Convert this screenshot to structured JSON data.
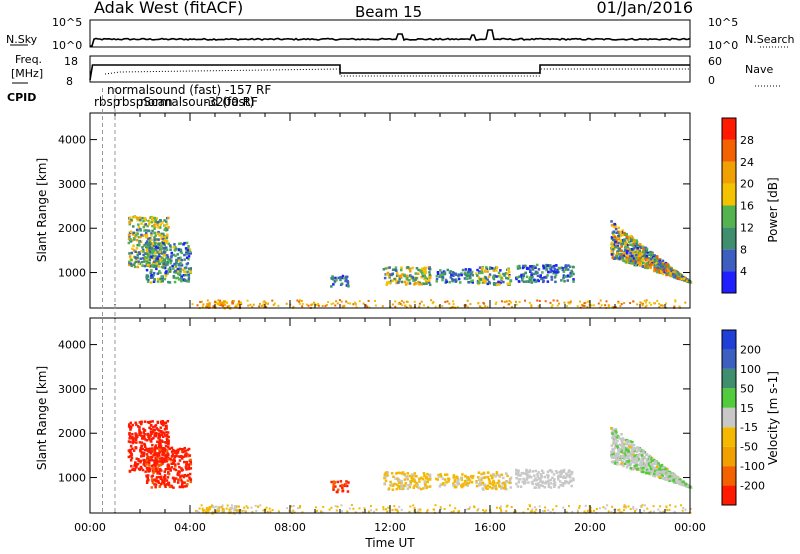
{
  "header": {
    "station": "Adak West (fitACF)",
    "beam": "Beam 15",
    "date": "01/Jan/2016"
  },
  "noise_panel": {
    "left_label": "N.Sky",
    "right_label": "N.Search",
    "y_ticks": [
      "10^5",
      "10^0"
    ]
  },
  "freq_panel": {
    "left_label_1": "Freq.",
    "left_label_2": "[MHz]",
    "left_ticks": [
      "18",
      "8"
    ],
    "right_label": "Nave",
    "right_ticks": [
      "60",
      "0"
    ]
  },
  "cpid": {
    "label": "CPID",
    "program_1": "normalsound (fast) -157 RF",
    "program_2": "rbsp",
    "program_3": "rbspScan",
    "program_4": "normalsound (fast)",
    "program_5": "-3200 RF"
  },
  "colors": {
    "power": [
      "#1f1fff",
      "#3d5fbf",
      "#3f8f6f",
      "#52b34f",
      "#f3c300",
      "#f0a000",
      "#f46200",
      "#ff1a00"
    ],
    "velocity": [
      "#ff1a00",
      "#f46200",
      "#f0a000",
      "#f4b800",
      "#c8c8c8",
      "#52cc3c",
      "#3f8f6f",
      "#3d5fbf",
      "#1f3fd6"
    ],
    "ground_scatter": "#a9a9a9"
  },
  "chart_data": [
    {
      "type": "heatmap",
      "name": "power",
      "xlabel": "",
      "ylabel": "Slant Range [km]",
      "x_range_hours": [
        0,
        24
      ],
      "ylim": [
        200,
        4600
      ],
      "y_ticks": [
        1000,
        2000,
        3000,
        4000
      ],
      "colorbar_label": "Power [dB]",
      "colorbar_ticks": [
        "4",
        "8",
        "12",
        "16",
        "20",
        "24",
        "28"
      ],
      "colorbar_range": [
        0,
        32
      ],
      "patches": [
        {
          "t0": 1.5,
          "t1": 3.1,
          "r0": 1150,
          "r1": 2300,
          "v": 14,
          "spread": 8
        },
        {
          "t0": 2.2,
          "t1": 4.0,
          "r0": 800,
          "r1": 1700,
          "v": 10,
          "spread": 8
        },
        {
          "t0": 4.6,
          "t1": 6.0,
          "r0": 220,
          "r1": 380,
          "v": 22,
          "spread": 6
        },
        {
          "t0": 9.6,
          "t1": 10.3,
          "r0": 700,
          "r1": 950,
          "v": 8,
          "spread": 6
        },
        {
          "t0": 11.7,
          "t1": 13.6,
          "r0": 750,
          "r1": 1150,
          "v": 14,
          "spread": 10
        },
        {
          "t0": 13.8,
          "t1": 15.3,
          "r0": 800,
          "r1": 1100,
          "v": 8,
          "spread": 8
        },
        {
          "t0": 15.4,
          "t1": 16.8,
          "r0": 750,
          "r1": 1150,
          "v": 12,
          "spread": 10
        },
        {
          "t0": 17.0,
          "t1": 19.3,
          "r0": 800,
          "r1": 1200,
          "v": 8,
          "spread": 8
        },
        {
          "t0": 20.8,
          "t1": 24.0,
          "r0": 800,
          "r1": 2200,
          "v": 14,
          "spread": 12
        }
      ]
    },
    {
      "type": "heatmap",
      "name": "velocity",
      "xlabel": "Time UT",
      "ylabel": "Slant Range [km]",
      "x_range_hours": [
        0,
        24
      ],
      "x_ticks": [
        "00:00",
        "04:00",
        "08:00",
        "12:00",
        "16:00",
        "20:00",
        "00:00"
      ],
      "ylim": [
        200,
        4600
      ],
      "y_ticks": [
        1000,
        2000,
        3000,
        4000
      ],
      "colorbar_label": "Velocity [m s-1]",
      "colorbar_ticks": [
        "-200",
        "-100",
        "-50",
        "-15",
        "15",
        "50",
        "100",
        "200"
      ],
      "colorbar_range": [
        -250,
        250
      ],
      "patches": [
        {
          "t0": 1.5,
          "t1": 3.1,
          "r0": 1150,
          "r1": 2300,
          "v": -230,
          "spread": 30
        },
        {
          "t0": 2.2,
          "t1": 4.0,
          "r0": 800,
          "r1": 1700,
          "v": -220,
          "spread": 40
        },
        {
          "t0": 4.6,
          "t1": 6.0,
          "r0": 220,
          "r1": 380,
          "v": -35,
          "spread": 20
        },
        {
          "t0": 9.6,
          "t1": 10.3,
          "r0": 700,
          "r1": 950,
          "v": -200,
          "spread": 40
        },
        {
          "t0": 11.7,
          "t1": 13.6,
          "r0": 750,
          "r1": 1150,
          "v": -35,
          "spread": 20
        },
        {
          "t0": 13.8,
          "t1": 15.3,
          "r0": 800,
          "r1": 1100,
          "v": -35,
          "spread": 25
        },
        {
          "t0": 15.4,
          "t1": 16.8,
          "r0": 750,
          "r1": 1150,
          "v": -30,
          "spread": 40
        },
        {
          "t0": 17.0,
          "t1": 19.3,
          "r0": 800,
          "r1": 1200,
          "v": 0,
          "spread": 12
        },
        {
          "t0": 20.8,
          "t1": 24.0,
          "r0": 800,
          "r1": 2200,
          "v": 10,
          "spread": 40
        }
      ]
    }
  ]
}
